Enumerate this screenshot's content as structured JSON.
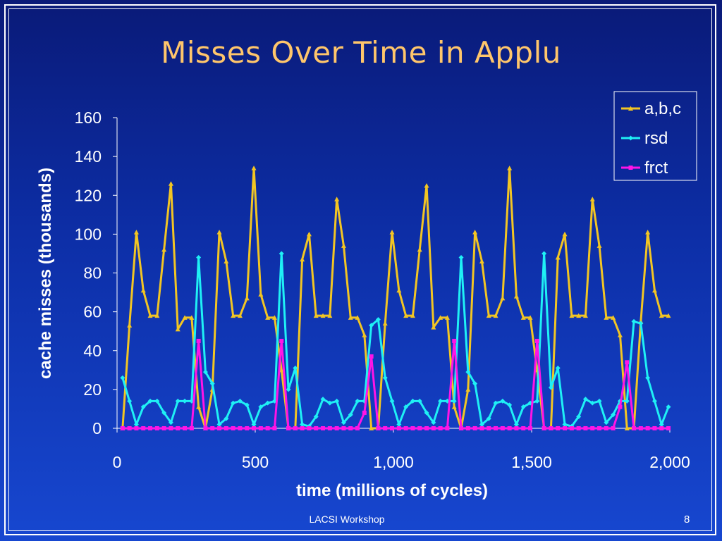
{
  "slide": {
    "title": "Misses Over Time in Applu",
    "footer": "LACSI Workshop",
    "page_number": "8"
  },
  "chart_data": {
    "type": "line",
    "title": "",
    "xlabel": "time (millions of cycles)",
    "ylabel": "cache misses (thousands)",
    "xlim": [
      0,
      2000
    ],
    "ylim": [
      0,
      160
    ],
    "xticks": [
      0,
      500,
      1000,
      1500,
      2000
    ],
    "xtick_labels": [
      "0",
      "500",
      "1,000",
      "1,500",
      "2,000"
    ],
    "yticks": [
      0,
      20,
      40,
      60,
      80,
      100,
      120,
      140,
      160
    ],
    "ytick_labels": [
      "0",
      "20",
      "40",
      "60",
      "80",
      "100",
      "120",
      "140",
      "160"
    ],
    "grid": false,
    "legend_position": "top-right",
    "colors": {
      "a,b,c": "#f2c523",
      "rsd": "#1ff0f5",
      "frct": "#ff14e6"
    },
    "x": [
      20,
      45,
      70,
      95,
      120,
      145,
      170,
      195,
      220,
      245,
      270,
      295,
      320,
      345,
      370,
      395,
      420,
      445,
      470,
      495,
      520,
      545,
      570,
      595,
      620,
      645,
      670,
      695,
      720,
      745,
      770,
      795,
      820,
      845,
      870,
      895,
      920,
      945,
      970,
      995,
      1020,
      1045,
      1070,
      1095,
      1120,
      1145,
      1170,
      1195,
      1220,
      1245,
      1270,
      1295,
      1320,
      1345,
      1370,
      1395,
      1420,
      1445,
      1470,
      1495,
      1520,
      1545,
      1570,
      1595,
      1620,
      1645,
      1670,
      1695,
      1720,
      1745,
      1770,
      1795,
      1820,
      1845,
      1870,
      1895,
      1920,
      1945,
      1970,
      1995
    ],
    "series": [
      {
        "name": "a,b,c",
        "values": [
          0,
          53,
          101,
          71,
          58,
          58,
          92,
          126,
          51,
          57,
          57,
          11,
          0,
          20,
          101,
          86,
          58,
          58,
          67,
          134,
          69,
          57,
          57,
          30,
          0,
          0,
          87,
          100,
          58,
          58,
          58,
          118,
          94,
          57,
          57,
          48,
          0,
          0,
          54,
          101,
          71,
          58,
          58,
          92,
          125,
          52,
          57,
          57,
          11,
          0,
          20,
          101,
          86,
          58,
          58,
          67,
          134,
          68,
          57,
          57,
          30,
          0,
          0,
          88,
          100,
          58,
          58,
          58,
          118,
          94,
          57,
          57,
          48,
          0,
          0,
          55,
          101,
          71,
          58,
          58
        ]
      },
      {
        "name": "rsd",
        "values": [
          26,
          14,
          2,
          11,
          14,
          14,
          8,
          3,
          14,
          14,
          14,
          88,
          29,
          23,
          2,
          5,
          13,
          14,
          12,
          2,
          11,
          13,
          14,
          90,
          20,
          31,
          2,
          1,
          6,
          15,
          13,
          14,
          3,
          7,
          14,
          14,
          53,
          56,
          26,
          14,
          2,
          11,
          14,
          14,
          8,
          3,
          14,
          14,
          14,
          88,
          29,
          23,
          2,
          5,
          13,
          14,
          12,
          2,
          11,
          13,
          14,
          90,
          21,
          31,
          2,
          1,
          6,
          15,
          13,
          14,
          3,
          7,
          14,
          14,
          55,
          54,
          26,
          14,
          2,
          11
        ]
      },
      {
        "name": "frct",
        "values": [
          0,
          0,
          0,
          0,
          0,
          0,
          0,
          0,
          0,
          0,
          0,
          45,
          0,
          0,
          0,
          0,
          0,
          0,
          0,
          0,
          0,
          0,
          0,
          45,
          0,
          0,
          0,
          0,
          0,
          0,
          0,
          0,
          0,
          0,
          0,
          8,
          37,
          0,
          0,
          0,
          0,
          0,
          0,
          0,
          0,
          0,
          0,
          0,
          45,
          0,
          0,
          0,
          0,
          0,
          0,
          0,
          0,
          0,
          0,
          0,
          45,
          0,
          0,
          0,
          0,
          0,
          0,
          0,
          0,
          0,
          0,
          0,
          11,
          34,
          0,
          0,
          0,
          0,
          0,
          0
        ]
      }
    ]
  }
}
